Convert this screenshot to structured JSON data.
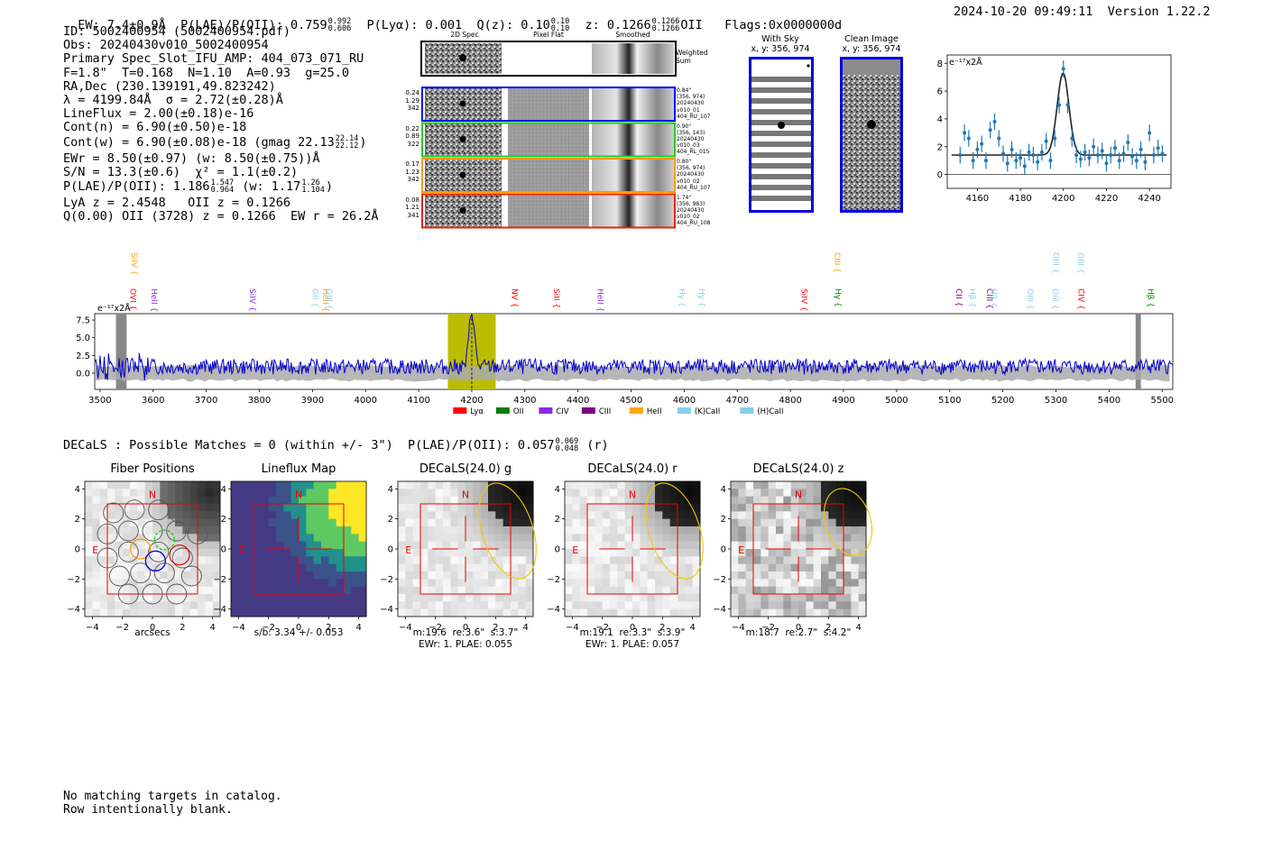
{
  "header": {
    "ew": "EW: 7.4±0.9Å",
    "plae_label": "P(LAE)/P(OII): 0.759",
    "plae_hi": "0.992",
    "plae_lo": "0.606",
    "plya": "P(Lyα): 0.001",
    "qz": "Q(z): 0.10",
    "qz_hi": "0.10",
    "qz_lo": "0.10",
    "z": "z: 0.1266",
    "z_hi": "0.1266",
    "z_lo": "0.1266",
    "z_line": "OII",
    "flags": "Flags:0x0000000d",
    "timestamp": "2024-10-20 09:49:11",
    "version": "Version 1.22.2"
  },
  "info": {
    "l1": "ID: 5002400954 (5002400954.pdf)",
    "l2": "Obs: 20240430v010_5002400954",
    "l3": "Primary Spec_Slot_IFU_AMP: 404_073_071_RU",
    "l4": "F=1.8\"  T=0.168  N=1.10  A=0.93  g=25.0",
    "l5": "RA,Dec (230.139191,49.823242)",
    "l6": "λ = 4199.84Å  σ = 2.72(±0.28)Å",
    "l7": "LineFlux = 2.00(±0.18)e-16",
    "l8": "Cont(n) = 6.90(±0.50)e-18",
    "l9": "Cont(w) = 6.90(±0.08)e-18 (gmag 22.13",
    "l9_hi": "22.14",
    "l9_lo": "22.12",
    "l9_end": ")",
    "l10": "EWr = 8.50(±0.97) (w: 8.50(±0.75))Å",
    "l11": "S/N = 13.3(±0.6)  χ² = 1.1(±0.2)",
    "l12": "P(LAE)/P(OII): 1.186",
    "l12_hi": "1.547",
    "l12_lo": "0.964",
    "l12_mid": " (w: 1.17",
    "l12_hi2": "1.26",
    "l12_lo2": "1.104",
    "l12_end": ")",
    "l13": "LyA z = 2.4548   OII z = 0.1266",
    "l14": "Q(0.00) OII (3728) z = 0.1266  EW r = 26.2Å"
  },
  "cutouts": {
    "col_2d": "2D Spec",
    "col_flat": "Pixel Flat",
    "col_smooth": "Smoothed",
    "weighted": "Weighted\nSum",
    "rows": [
      {
        "w": "0.24",
        "n": "1.29",
        "e": "342",
        "color": "#0000ff",
        "d1": "0.84\"",
        "d2": "(356, 974)",
        "d3": "20240430",
        "d4": "v010_01",
        "d5": "404_RU_107"
      },
      {
        "w": "0.22",
        "n": "0.89",
        "e": "322",
        "color": "#22cc22",
        "d1": "0.90\"",
        "d2": "(356, 143)",
        "d3": "20240430",
        "d4": "v010_03",
        "d5": "404_RL_015"
      },
      {
        "w": "0.17",
        "n": "1.23",
        "e": "342",
        "color": "#ff9900",
        "d1": "0.80\"",
        "d2": "(356, 974)",
        "d3": "20240430",
        "d4": "v010_02",
        "d5": "404_RU_107"
      },
      {
        "w": "0.08",
        "n": "1.21",
        "e": "341",
        "color": "#ee2200",
        "d1": "1.74\"",
        "d2": "(356, 983)",
        "d3": "20240430",
        "d4": "v010_02",
        "d5": "404_RU_108"
      }
    ]
  },
  "sky": {
    "with_sky": "With Sky",
    "with_sky_xy": "x, y: 356, 974",
    "clean": "Clean Image",
    "clean_xy": "x, y: 356, 974"
  },
  "zoom_chart": {
    "ylabel": "e⁻¹⁷x2Å"
  },
  "spectrum": {
    "ylabel": "e⁻¹⁷x2Å",
    "legend": [
      {
        "label": "Lyα",
        "color": "#ff0000"
      },
      {
        "label": "OII",
        "color": "#008000"
      },
      {
        "label": "CIV",
        "color": "#8a2be2"
      },
      {
        "label": "CIII",
        "color": "#800080"
      },
      {
        "label": "HeII",
        "color": "#ffa500"
      },
      {
        "label": "(K)CaII",
        "color": "#87ceeb"
      },
      {
        "label": "(H)CaII",
        "color": "#87ceeb"
      }
    ],
    "lines": [
      {
        "label": "SiIV",
        "wl": 3565,
        "color": "#ffa500",
        "row": 0
      },
      {
        "label": "OVI",
        "wl": 3562,
        "color": "#ff0000",
        "row": 1
      },
      {
        "label": "HeII",
        "wl": 3602,
        "color": "#8a2be2",
        "row": 1
      },
      {
        "label": "SiIV",
        "wl": 3787,
        "color": "#8a2be2",
        "row": 1
      },
      {
        "label": "OII",
        "wl": 3905,
        "color": "#87ceeb",
        "row": 1
      },
      {
        "label": "HeII",
        "wl": 3925,
        "color": "#ffa500",
        "row": 1
      },
      {
        "label": "OIII",
        "wl": 3932,
        "color": "#87ceeb",
        "row": 1
      },
      {
        "label": "NV",
        "wl": 4281,
        "color": "#ff0000",
        "row": 1
      },
      {
        "label": "SiII",
        "wl": 4360,
        "color": "#ff0000",
        "row": 1
      },
      {
        "label": "HeII",
        "wl": 4442,
        "color": "#8a2be2",
        "row": 1
      },
      {
        "label": "Hγ",
        "wl": 4596,
        "color": "#87ceeb",
        "row": 1
      },
      {
        "label": "Hγ",
        "wl": 4633,
        "color": "#87ceeb",
        "row": 1
      },
      {
        "label": "SiIV",
        "wl": 4826,
        "color": "#ff0000",
        "row": 1
      },
      {
        "label": "CIII",
        "wl": 4888,
        "color": "#ffa500",
        "row": 0
      },
      {
        "label": "Hγ",
        "wl": 4890,
        "color": "#008000",
        "row": 1
      },
      {
        "label": "CII",
        "wl": 5117,
        "color": "#800080",
        "row": 1
      },
      {
        "label": "Hβ",
        "wl": 5143,
        "color": "#87ceeb",
        "row": 1
      },
      {
        "label": "CIII",
        "wl": 5175,
        "color": "#800080",
        "row": 1
      },
      {
        "label": "Hβ",
        "wl": 5183,
        "color": "#87ceeb",
        "row": 1
      },
      {
        "label": "OIII",
        "wl": 5252,
        "color": "#87ceeb",
        "row": 1
      },
      {
        "label": "OIII",
        "wl": 5300,
        "color": "#87ceeb",
        "row": 0
      },
      {
        "label": "OIII",
        "wl": 5299,
        "color": "#87ceeb",
        "row": 1
      },
      {
        "label": "OIII",
        "wl": 5347,
        "color": "#87ceeb",
        "row": 0
      },
      {
        "label": "CIV",
        "wl": 5348,
        "color": "#ff0000",
        "row": 1
      },
      {
        "label": "Hβ",
        "wl": 5478,
        "color": "#008000",
        "row": 1
      }
    ]
  },
  "decals": {
    "summary": "DECaLS : Possible Matches = 0 (within +/- 3\")  P(LAE)/P(OII): 0.057",
    "summary_hi": "0.069",
    "summary_lo": "0.048",
    "summary_band": "(r)",
    "panels": [
      {
        "title": "Fiber Positions",
        "cap1": "arcsecs",
        "cap2": ""
      },
      {
        "title": "Lineflux Map",
        "cap1": "s/b: 3.34 +/- 0.053",
        "cap2": ""
      },
      {
        "title": "DECaLS(24.0) g",
        "cap1": "m:19.6  re:3.6\"  s:3.7\"",
        "cap2": "EWr: 1. PLAE: 0.055"
      },
      {
        "title": "DECaLS(24.0) r",
        "cap1": "m:19.1  re:3.3\"  s:3.9\"",
        "cap2": "EWr: 1. PLAE: 0.057"
      },
      {
        "title": "DECaLS(24.0) z",
        "cap1": "m:18.7  re:2.7\"  s:4.2\"",
        "cap2": ""
      }
    ],
    "north": "N",
    "east": "E"
  },
  "footer": {
    "l1": "No matching targets in catalog.",
    "l2": "Row intentionally blank."
  },
  "chart_data": [
    {
      "type": "scatter",
      "title": "",
      "xlabel": "",
      "ylabel": "e⁻¹⁷x2Å",
      "xlim": [
        4146,
        4250
      ],
      "ylim": [
        -1,
        8.6
      ],
      "xticks": [
        4160,
        4180,
        4200,
        4220,
        4240
      ],
      "yticks": [
        0,
        2,
        4,
        6,
        8
      ],
      "fit": {
        "center": 4199.84,
        "sigma": 2.72,
        "amplitude": 5.9,
        "continuum": 1.4
      },
      "x": [
        4152,
        4154,
        4156,
        4158,
        4160,
        4162,
        4164,
        4166,
        4168,
        4170,
        4172,
        4174,
        4176,
        4178,
        4180,
        4182,
        4184,
        4186,
        4188,
        4190,
        4192,
        4194,
        4196,
        4198,
        4200,
        4202,
        4204,
        4206,
        4208,
        4210,
        4212,
        4214,
        4216,
        4218,
        4220,
        4222,
        4224,
        4226,
        4228,
        4230,
        4232,
        4234,
        4236,
        4238,
        4240,
        4242,
        4244,
        4246
      ],
      "y": [
        1.4,
        3.0,
        2.6,
        1.0,
        1.8,
        2.2,
        1.0,
        3.2,
        3.8,
        2.6,
        1.5,
        0.8,
        1.8,
        1.0,
        1.2,
        0.6,
        1.6,
        1.4,
        0.9,
        1.6,
        2.4,
        1.0,
        2.6,
        5.0,
        7.6,
        5.0,
        2.6,
        1.4,
        1.1,
        1.6,
        1.2,
        2.0,
        1.4,
        1.7,
        0.8,
        1.4,
        1.9,
        1.0,
        1.5,
        2.3,
        1.3,
        1.0,
        1.8,
        0.9,
        3.0,
        1.4,
        1.9,
        1.5
      ],
      "yerr": [
        0.6,
        0.6,
        0.6,
        0.6,
        0.6,
        0.6,
        0.6,
        0.6,
        0.6,
        0.6,
        0.6,
        0.6,
        0.6,
        0.6,
        0.6,
        0.6,
        0.6,
        0.6,
        0.6,
        0.6,
        0.6,
        0.6,
        0.6,
        0.6,
        0.6,
        0.6,
        0.6,
        0.6,
        0.6,
        0.6,
        0.6,
        0.6,
        0.6,
        0.6,
        0.6,
        0.6,
        0.6,
        0.6,
        0.6,
        0.6,
        0.6,
        0.6,
        0.6,
        0.6,
        0.6,
        0.6,
        0.6,
        0.6
      ]
    },
    {
      "type": "line",
      "title": "",
      "xlabel": "",
      "ylabel": "e⁻¹⁷x2Å",
      "xlim": [
        3490,
        5520
      ],
      "ylim": [
        -2.3,
        8.4
      ],
      "xticks": [
        3500,
        3600,
        3700,
        3800,
        3900,
        4000,
        4100,
        4200,
        4300,
        4400,
        4500,
        4600,
        4700,
        4800,
        4900,
        5000,
        5100,
        5200,
        5300,
        5400,
        5500
      ],
      "yticks": [
        0.0,
        2.5,
        5.0,
        7.5
      ],
      "highlight_band": [
        4155,
        4245
      ],
      "marked_line": 4200,
      "masked_regions": [
        [
          3530,
          3550
        ],
        [
          5450,
          5460
        ]
      ],
      "series": [
        {
          "name": "spectrum",
          "color": "#0000cc",
          "line_peak": 7.9,
          "line_center": 4200,
          "line_sigma": 5,
          "noise_level": 1.0
        },
        {
          "name": "error band",
          "color": "#aaaaaa",
          "level": 1.0
        }
      ]
    }
  ]
}
